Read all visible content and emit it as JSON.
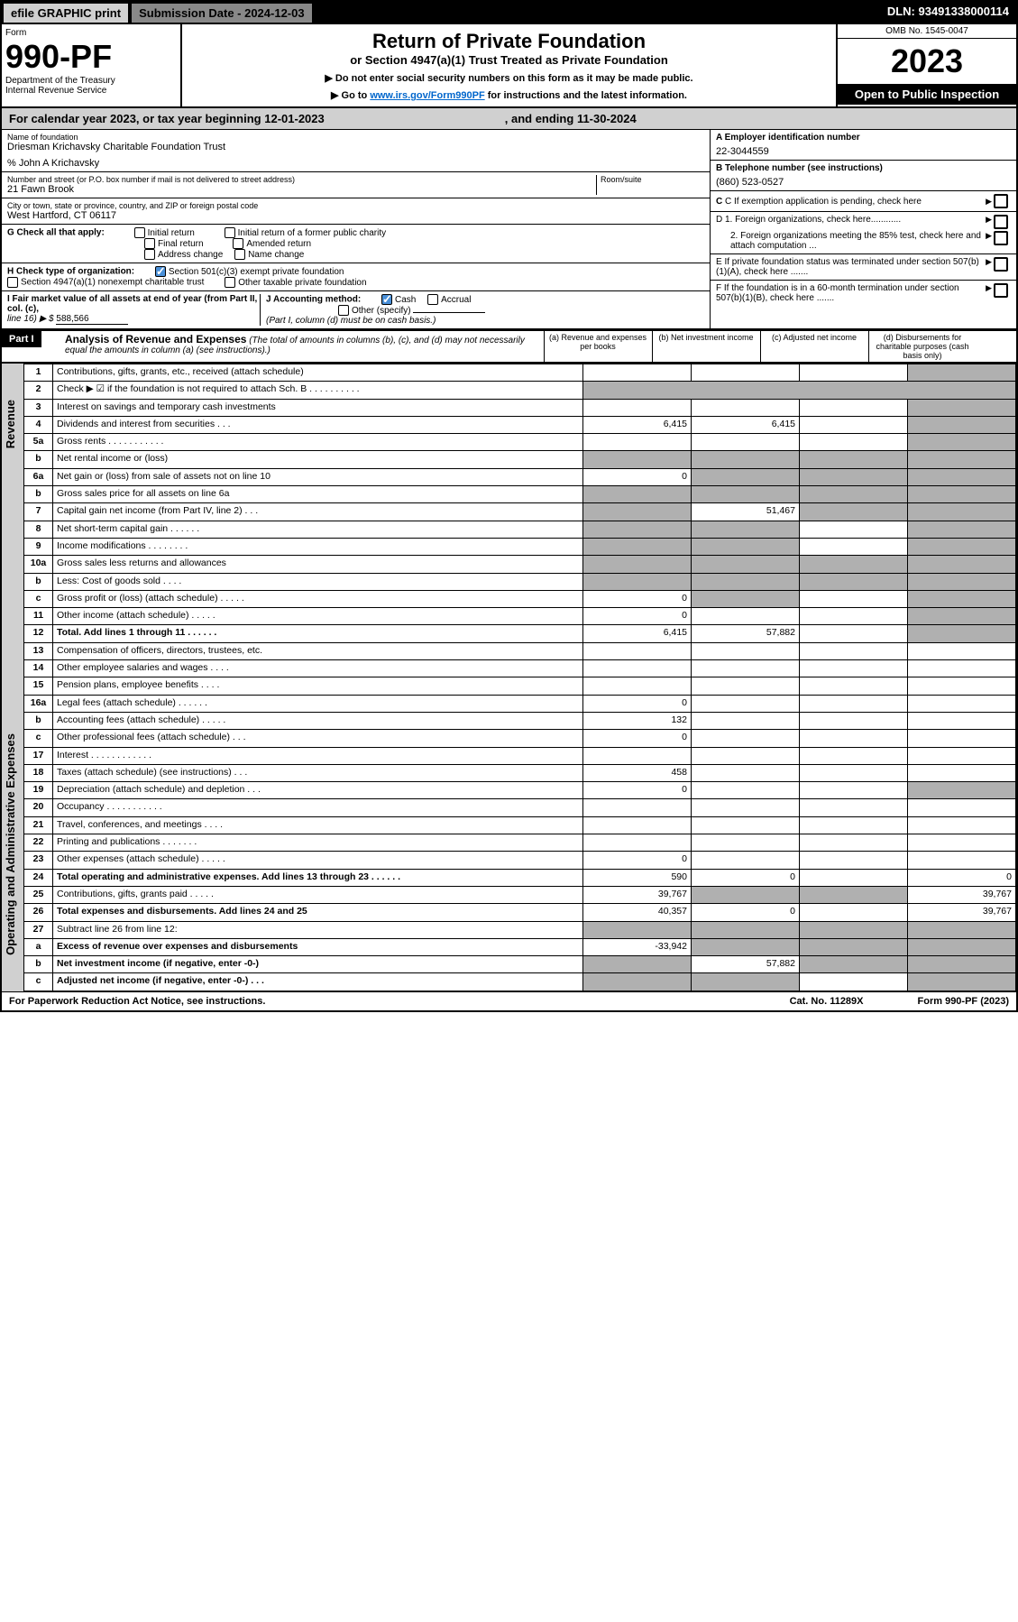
{
  "topbar": {
    "efile": "efile GRAPHIC print",
    "submission_label": "Submission Date - 2024-12-03",
    "dln": "DLN: 93491338000114"
  },
  "header": {
    "form_word": "Form",
    "form_number": "990-PF",
    "dept1": "Department of the Treasury",
    "dept2": "Internal Revenue Service",
    "title": "Return of Private Foundation",
    "subtitle": "or Section 4947(a)(1) Trust Treated as Private Foundation",
    "instr1": "▶ Do not enter social security numbers on this form as it may be made public.",
    "instr2": "▶ Go to",
    "instr2_link": "www.irs.gov/Form990PF",
    "instr2_tail": "for instructions and the latest information.",
    "omb": "OMB No. 1545-0047",
    "year": "2023",
    "open": "Open to Public Inspection"
  },
  "cal": {
    "pre": "For calendar year 2023, or tax year beginning",
    "begin": "12-01-2023",
    "mid": ", and ending",
    "end": "11-30-2024"
  },
  "id": {
    "name_lbl": "Name of foundation",
    "name": "Driesman Krichavsky Charitable Foundation Trust",
    "careof": "% John A Krichavsky",
    "addr_lbl": "Number and street (or P.O. box number if mail is not delivered to street address)",
    "addr": "21 Fawn Brook",
    "room_lbl": "Room/suite",
    "city_lbl": "City or town, state or province, country, and ZIP or foreign postal code",
    "city": "West Hartford, CT  06117",
    "a_lbl": "A Employer identification number",
    "a_val": "22-3044559",
    "b_lbl": "B Telephone number (see instructions)",
    "b_val": "(860) 523-0527",
    "c_lbl": "C If exemption application is pending, check here",
    "d1": "D 1. Foreign organizations, check here............",
    "d2": "2. Foreign organizations meeting the 85% test, check here and attach computation ...",
    "e_lbl": "E  If private foundation status was terminated under section 507(b)(1)(A), check here .......",
    "f_lbl": "F  If the foundation is in a 60-month termination under section 507(b)(1)(B), check here .......",
    "g_lbl": "G Check all that apply:",
    "g_initial": "Initial return",
    "g_initial_former": "Initial return of a former public charity",
    "g_final": "Final return",
    "g_amended": "Amended return",
    "g_address": "Address change",
    "g_name": "Name change",
    "h_lbl": "H Check type of organization:",
    "h_501c3": "Section 501(c)(3) exempt private foundation",
    "h_4947": "Section 4947(a)(1) nonexempt charitable trust",
    "h_other_tax": "Other taxable private foundation",
    "i_lbl": "I Fair market value of all assets at end of year (from Part II, col. (c),",
    "i_line": "line 16) ▶ $",
    "i_val": "588,566",
    "j_lbl": "J Accounting method:",
    "j_cash": "Cash",
    "j_accrual": "Accrual",
    "j_other": "Other (specify)",
    "j_note": "(Part I, column (d) must be on cash basis.)"
  },
  "part1": {
    "label": "Part I",
    "title": "Analysis of Revenue and Expenses",
    "title_note": "(The total of amounts in columns (b), (c), and (d) may not necessarily equal the amounts in column (a) (see instructions).)",
    "col_a": "(a)   Revenue and expenses per books",
    "col_b": "(b)   Net investment income",
    "col_c": "(c)   Adjusted net income",
    "col_d": "(d)   Disbursements for charitable purposes (cash basis only)"
  },
  "side": {
    "rev": "Revenue",
    "opex": "Operating and Administrative Expenses"
  },
  "rows": [
    {
      "n": "1",
      "d": "Contributions, gifts, grants, etc., received (attach schedule)",
      "a": "",
      "b": "",
      "c": "",
      "dshade": true
    },
    {
      "n": "2",
      "d": "Check ▶ ☑ if the foundation is not required to attach Sch. B . . . . . . . . . .",
      "noabcd": true
    },
    {
      "n": "3",
      "d": "Interest on savings and temporary cash investments",
      "a": "",
      "b": "",
      "c": "",
      "dshade": true
    },
    {
      "n": "4",
      "d": "Dividends and interest from securities . . .",
      "a": "6,415",
      "b": "6,415",
      "c": "",
      "dshade": true
    },
    {
      "n": "5a",
      "d": "Gross rents . . . . . . . . . . .",
      "a": "",
      "b": "",
      "c": "",
      "dshade": true
    },
    {
      "n": "b",
      "d": "Net rental income or (loss)",
      "a": "",
      "b": "",
      "c": "",
      "dshade": true,
      "ashade": true,
      "bshade": true,
      "cshade": true
    },
    {
      "n": "6a",
      "d": "Net gain or (loss) from sale of assets not on line 10",
      "a": "0",
      "bshade": true,
      "cshade": true,
      "dshade": true
    },
    {
      "n": "b",
      "d": "Gross sales price for all assets on line 6a",
      "ashade": true,
      "bshade": true,
      "cshade": true,
      "dshade": true
    },
    {
      "n": "7",
      "d": "Capital gain net income (from Part IV, line 2) . . .",
      "ashade": true,
      "b": "51,467",
      "cshade": true,
      "dshade": true
    },
    {
      "n": "8",
      "d": "Net short-term capital gain . . . . . .",
      "ashade": true,
      "bshade": true,
      "c": "",
      "dshade": true
    },
    {
      "n": "9",
      "d": "Income modifications . . . . . . . .",
      "ashade": true,
      "bshade": true,
      "c": "",
      "dshade": true
    },
    {
      "n": "10a",
      "d": "Gross sales less returns and allowances",
      "ashade": true,
      "bshade": true,
      "cshade": true,
      "dshade": true
    },
    {
      "n": "b",
      "d": "Less: Cost of goods sold . . . .",
      "ashade": true,
      "bshade": true,
      "cshade": true,
      "dshade": true
    },
    {
      "n": "c",
      "d": "Gross profit or (loss) (attach schedule) . . . . .",
      "a": "0",
      "bshade": true,
      "c": "",
      "dshade": true
    },
    {
      "n": "11",
      "d": "Other income (attach schedule) . . . . .",
      "a": "0",
      "b": "",
      "c": "",
      "dshade": true
    },
    {
      "n": "12",
      "d": "Total. Add lines 1 through 11 . . . . . .",
      "a": "6,415",
      "b": "57,882",
      "c": "",
      "dshade": true,
      "bold": true
    },
    {
      "n": "13",
      "d": "Compensation of officers, directors, trustees, etc.",
      "a": "",
      "b": "",
      "c": "",
      "dval": ""
    },
    {
      "n": "14",
      "d": "Other employee salaries and wages . . . .",
      "a": "",
      "b": "",
      "c": "",
      "dval": ""
    },
    {
      "n": "15",
      "d": "Pension plans, employee benefits . . . .",
      "a": "",
      "b": "",
      "c": "",
      "dval": ""
    },
    {
      "n": "16a",
      "d": "Legal fees (attach schedule) . . . . . .",
      "a": "0",
      "b": "",
      "c": "",
      "dval": ""
    },
    {
      "n": "b",
      "d": "Accounting fees (attach schedule) . . . . .",
      "a": "132",
      "b": "",
      "c": "",
      "dval": ""
    },
    {
      "n": "c",
      "d": "Other professional fees (attach schedule) . . .",
      "a": "0",
      "b": "",
      "c": "",
      "dval": ""
    },
    {
      "n": "17",
      "d": "Interest . . . . . . . . . . . .",
      "a": "",
      "b": "",
      "c": "",
      "dval": ""
    },
    {
      "n": "18",
      "d": "Taxes (attach schedule) (see instructions) . . .",
      "a": "458",
      "b": "",
      "c": "",
      "dval": ""
    },
    {
      "n": "19",
      "d": "Depreciation (attach schedule) and depletion . . .",
      "a": "0",
      "b": "",
      "c": "",
      "dshade": true
    },
    {
      "n": "20",
      "d": "Occupancy . . . . . . . . . . .",
      "a": "",
      "b": "",
      "c": "",
      "dval": ""
    },
    {
      "n": "21",
      "d": "Travel, conferences, and meetings . . . .",
      "a": "",
      "b": "",
      "c": "",
      "dval": ""
    },
    {
      "n": "22",
      "d": "Printing and publications . . . . . . .",
      "a": "",
      "b": "",
      "c": "",
      "dval": ""
    },
    {
      "n": "23",
      "d": "Other expenses (attach schedule) . . . . .",
      "a": "0",
      "b": "",
      "c": "",
      "dval": ""
    },
    {
      "n": "24",
      "d": "Total operating and administrative expenses. Add lines 13 through 23 . . . . . .",
      "a": "590",
      "b": "0",
      "c": "",
      "dval": "0",
      "bold": true
    },
    {
      "n": "25",
      "d": "Contributions, gifts, grants paid . . . . .",
      "a": "39,767",
      "bshade": true,
      "cshade": true,
      "dval": "39,767"
    },
    {
      "n": "26",
      "d": "Total expenses and disbursements. Add lines 24 and 25",
      "a": "40,357",
      "b": "0",
      "c": "",
      "dval": "39,767",
      "bold": true
    },
    {
      "n": "27",
      "d": "Subtract line 26 from line 12:",
      "ashade": true,
      "bshade": true,
      "cshade": true,
      "dshade": true
    },
    {
      "n": "a",
      "d": "Excess of revenue over expenses and disbursements",
      "a": "-33,942",
      "bshade": true,
      "cshade": true,
      "dshade": true,
      "bold": true
    },
    {
      "n": "b",
      "d": "Net investment income (if negative, enter -0-)",
      "ashade": true,
      "b": "57,882",
      "cshade": true,
      "dshade": true,
      "bold": true
    },
    {
      "n": "c",
      "d": "Adjusted net income (if negative, enter -0-) . . .",
      "ashade": true,
      "bshade": true,
      "c": "",
      "dshade": true,
      "bold": true
    }
  ],
  "footer": {
    "left": "For Paperwork Reduction Act Notice, see instructions.",
    "cat": "Cat. No. 11289X",
    "form": "Form 990-PF (2023)"
  }
}
